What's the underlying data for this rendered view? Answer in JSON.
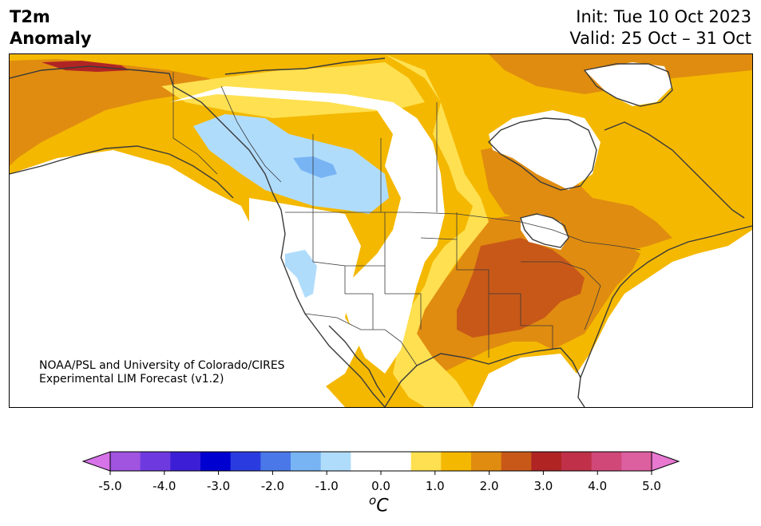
{
  "header": {
    "title_line1": "T2m",
    "title_line2": "Anomaly",
    "init": "Init: Tue 10 Oct 2023",
    "valid": "Valid: 25 Oct – 31 Oct"
  },
  "credit": {
    "line1": "NOAA/PSL and University of Colorado/CIRES",
    "line2": "Experimental LIM Forecast (v1.2)"
  },
  "legend": {
    "unit_base": "C",
    "unit_sup": "o",
    "tick_labels": [
      "-5.0",
      "-4.0",
      "-3.0",
      "-2.0",
      "-1.0",
      "0.0",
      "1.0",
      "2.0",
      "3.0",
      "4.0",
      "5.0"
    ],
    "colors": [
      "#d673e8",
      "#a054e0",
      "#6e3ae0",
      "#3c1ed6",
      "#0000d0",
      "#2a3ce0",
      "#4a78e8",
      "#78b4f4",
      "#b0dcfc",
      "#ffffff",
      "#ffffff",
      "#ffe050",
      "#f4b800",
      "#e08c10",
      "#c85818",
      "#b02424",
      "#c03048",
      "#d04878",
      "#dc60a0",
      "#e878d0"
    ]
  },
  "map": {
    "colors": {
      "yellow": "#ffe050",
      "light_orange": "#f4b800",
      "orange": "#e08c10",
      "dark_orange": "#c85818",
      "red": "#b02424",
      "light_blue": "#b0dcfc",
      "mid_blue": "#78b4f4",
      "coast": "#3a3a3a"
    }
  }
}
